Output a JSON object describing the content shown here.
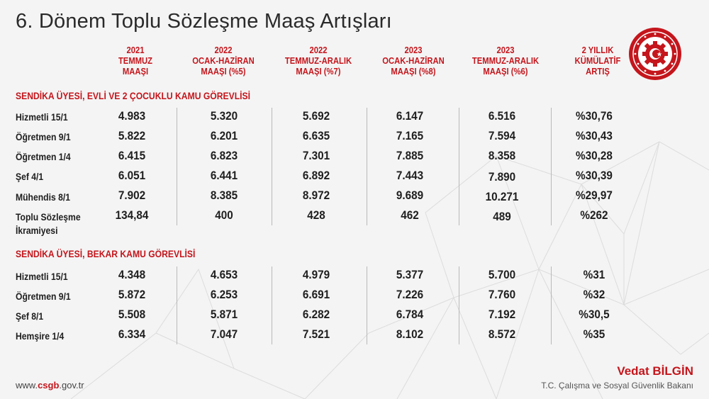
{
  "title": "6. Dönem Toplu Sözleşme Maaş Artışları",
  "columns": [
    {
      "l1": "2021",
      "l2": "TEMMUZ",
      "l3": "MAAŞI"
    },
    {
      "l1": "2022",
      "l2": "OCAK-HAZİRAN",
      "l3": "MAAŞI (%5)"
    },
    {
      "l1": "2022",
      "l2": "TEMMUZ-ARALIK",
      "l3": "MAAŞI (%7)"
    },
    {
      "l1": "2023",
      "l2": "OCAK-HAZİRAN",
      "l3": "MAAŞI (%8)"
    },
    {
      "l1": "2023",
      "l2": "TEMMUZ-ARALIK",
      "l3": "MAAŞI (%6)"
    },
    {
      "l1": "2 YILLIK",
      "l2": "KÜMÜLATİF",
      "l3": "ARTIŞ"
    }
  ],
  "sections": [
    {
      "title": "SENDİKA ÜYESİ, EVLİ VE 2 ÇOCUKLU KAMU GÖREVLİSİ",
      "rows": [
        {
          "label": "Hizmetli 15/1",
          "label2": "",
          "values": [
            "4.983",
            "5.320",
            "5.692",
            "6.147",
            "6.516",
            "%30,76"
          ]
        },
        {
          "label": "Öğretmen 9/1",
          "label2": "",
          "values": [
            "5.822",
            "6.201",
            "6.635",
            "7.165",
            "7.594",
            "%30,43"
          ]
        },
        {
          "label": "Öğretmen 1/4",
          "label2": "",
          "values": [
            "6.415",
            "6.823",
            "7.301",
            "7.885",
            "8.358",
            "%30,28"
          ]
        },
        {
          "label": "Şef 4/1",
          "label2": "",
          "values": [
            "6.051",
            "6.441",
            "6.892",
            "7.443",
            "7.890",
            "%30,39"
          ]
        },
        {
          "label": "Mühendis 8/1",
          "label2": "",
          "values": [
            "7.902",
            "8.385",
            "8.972",
            "9.689",
            "10.271",
            "%29,97"
          ]
        },
        {
          "label": "Toplu Sözleşme",
          "label2": "İkramiyesi",
          "values": [
            "134,84",
            "400",
            "428",
            "462",
            "489",
            "%262"
          ]
        }
      ]
    },
    {
      "title": "SENDİKA ÜYESİ, BEKAR KAMU GÖREVLİSİ",
      "rows": [
        {
          "label": "Hizmetli 15/1",
          "label2": "",
          "values": [
            "4.348",
            "4.653",
            "4.979",
            "5.377",
            "5.700",
            "%31"
          ]
        },
        {
          "label": "Öğretmen 9/1",
          "label2": "",
          "values": [
            "5.872",
            "6.253",
            "6.691",
            "7.226",
            "7.760",
            "%32"
          ]
        },
        {
          "label": "Şef 8/1",
          "label2": "",
          "values": [
            "5.508",
            "5.871",
            "6.282",
            "6.784",
            "7.192",
            "%30,5"
          ]
        },
        {
          "label": "Hemşire 1/4",
          "label2": "",
          "values": [
            "6.334",
            "7.047",
            "7.521",
            "8.102",
            "8.572",
            "%35"
          ]
        }
      ]
    }
  ],
  "footer": {
    "url_prefix": "www.",
    "url_brand": "csgb",
    "url_suffix": ".gov.tr",
    "name": "Vedat BİLGİN",
    "role": "T.C. Çalışma ve Sosyal Güvenlik Bakanı"
  },
  "colors": {
    "accent": "#c4161c",
    "text": "#1e1e1e",
    "background": "#f4f4f4"
  },
  "logo_icon": "ministry-gear-emblem-icon"
}
